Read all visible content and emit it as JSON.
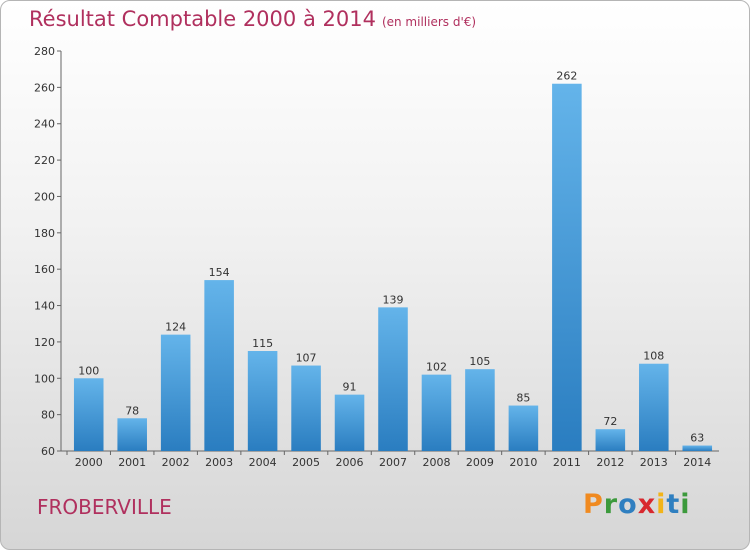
{
  "header": {
    "title": "Résultat Comptable 2000 à 2014",
    "unit": "(en milliers d'€)"
  },
  "footer": {
    "town": "FROBERVILLE",
    "logo": "Proxiti"
  },
  "colors": {
    "bar_light": "#5faee6",
    "bar_dark": "#2a7dc0",
    "title": "#b0305e"
  },
  "chart_data": {
    "type": "bar",
    "title": "Résultat Comptable 2000 à 2014",
    "ylabel": "en milliers d'€",
    "categories": [
      "2000",
      "2001",
      "2002",
      "2003",
      "2004",
      "2005",
      "2006",
      "2007",
      "2008",
      "2009",
      "2010",
      "2011",
      "2012",
      "2013",
      "2014"
    ],
    "values": [
      100,
      78,
      124,
      154,
      115,
      107,
      91,
      139,
      102,
      105,
      85,
      262,
      72,
      108,
      63
    ],
    "ylim": [
      60,
      280
    ],
    "yticks": [
      60,
      80,
      100,
      120,
      140,
      160,
      180,
      200,
      220,
      240,
      260,
      280
    ],
    "grid": false
  }
}
